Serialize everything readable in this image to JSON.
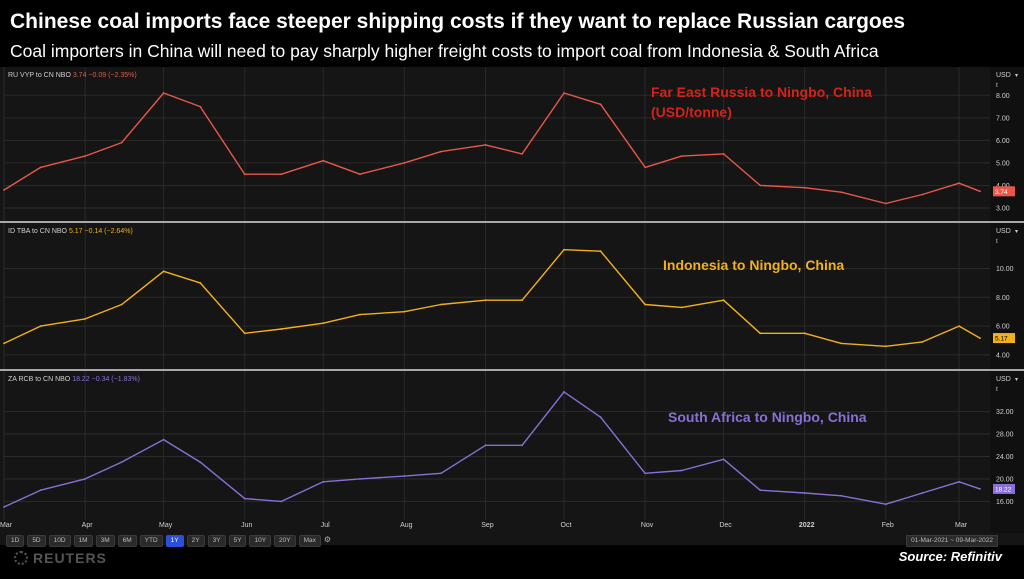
{
  "header": {
    "title": "Chinese coal imports face steeper shipping costs if they want to replace Russian cargoes",
    "subtitle": "Coal importers in China will need to pay sharply higher freight costs to import coal from Indonesia & South Africa"
  },
  "toolbar": {
    "timeframes": [
      "1D",
      "5D",
      "10D",
      "1M",
      "3M",
      "6M",
      "YTD",
      "1Y",
      "2Y",
      "3Y",
      "5Y",
      "10Y",
      "20Y",
      "Max"
    ],
    "active": "1Y",
    "date_range": "01-Mar-2021 ~ 09-Mar-2022"
  },
  "footer": {
    "brand": "REUTERS",
    "source": "Source: Refinitiv"
  },
  "chart_data": {
    "type": "line",
    "x_ticks": [
      "Mar",
      "Apr",
      "May",
      "Jun",
      "Jul",
      "Aug",
      "Sep",
      "Oct",
      "Nov",
      "Dec",
      "2022",
      "Feb",
      "Mar"
    ],
    "x": [
      "2021-03-01",
      "2021-03-15",
      "2021-04-01",
      "2021-04-15",
      "2021-05-01",
      "2021-05-15",
      "2021-06-01",
      "2021-06-15",
      "2021-07-01",
      "2021-07-15",
      "2021-08-01",
      "2021-08-15",
      "2021-09-01",
      "2021-09-15",
      "2021-10-01",
      "2021-10-15",
      "2021-11-01",
      "2021-11-15",
      "2021-12-01",
      "2021-12-15",
      "2022-01-01",
      "2022-01-15",
      "2022-02-01",
      "2022-02-15",
      "2022-03-01",
      "2022-03-09"
    ],
    "colors": {
      "russia": "#e8574a",
      "indonesia": "#f2b01e",
      "southafrica": "#8a6fd6",
      "grid": "#2a2a2a",
      "divider": "#d9d9d9",
      "axis_text": "#cfcfcf"
    },
    "panels": [
      {
        "id": "russia",
        "legend": "RU VYP to CN NBO",
        "last": "3.74",
        "change": "−0.09 (−2.35%)",
        "annotation": [
          "Far East Russia to Ningbo, China",
          "(USD/tonne)"
        ],
        "annotation_color": "#d0241b",
        "unit": "USD",
        "y_ticks": [
          3.0,
          4.0,
          5.0,
          6.0,
          7.0,
          8.0
        ],
        "ylim": [
          2.6,
          8.9
        ],
        "values": [
          3.8,
          4.8,
          5.3,
          5.9,
          8.1,
          7.5,
          4.5,
          4.5,
          5.1,
          4.5,
          5.0,
          5.5,
          5.8,
          5.4,
          8.1,
          7.6,
          4.8,
          5.3,
          5.4,
          4.0,
          3.9,
          3.7,
          3.2,
          3.6,
          4.1,
          3.74
        ]
      },
      {
        "id": "indonesia",
        "legend": "ID TBA to CN NBO",
        "last": "5.17",
        "change": "−0.14 (−2.64%)",
        "annotation": [
          "Indonesia to Ningbo, China"
        ],
        "annotation_color": "#f2b01e",
        "unit": "USD",
        "y_ticks": [
          4.0,
          6.0,
          8.0,
          10.0
        ],
        "ylim": [
          3.3,
          12.6
        ],
        "values": [
          4.8,
          6.0,
          6.5,
          7.5,
          9.8,
          9.0,
          5.5,
          5.8,
          6.2,
          6.8,
          7.0,
          7.5,
          7.8,
          7.8,
          11.3,
          11.2,
          7.5,
          7.3,
          7.8,
          5.5,
          5.5,
          4.8,
          4.6,
          4.9,
          6.0,
          5.17
        ]
      },
      {
        "id": "southafrica",
        "legend": "ZA RCB to CN NBO",
        "last": "18.22",
        "change": "−0.34 (−1.83%)",
        "annotation": [
          "South Africa to Ningbo, China"
        ],
        "annotation_color": "#8a6fd6",
        "unit": "USD",
        "y_ticks": [
          16.0,
          20.0,
          24.0,
          28.0,
          32.0
        ],
        "ylim": [
          13.4,
          37.8
        ],
        "values": [
          15.0,
          18.0,
          20.0,
          23.0,
          27.0,
          23.0,
          16.5,
          16.0,
          19.5,
          20.0,
          20.5,
          21.0,
          26.0,
          26.0,
          35.5,
          31.0,
          21.0,
          21.5,
          23.5,
          18.0,
          17.5,
          17.0,
          15.5,
          17.5,
          19.5,
          18.22
        ]
      }
    ]
  }
}
